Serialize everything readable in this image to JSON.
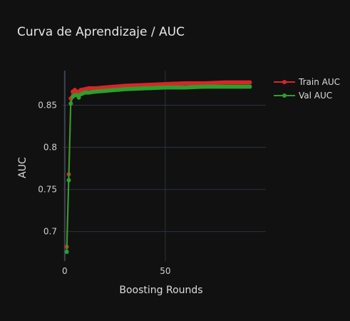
{
  "chart_data": {
    "type": "line",
    "title": "Curva de Aprendizaje / AUC",
    "xlabel": "Boosting Rounds",
    "ylabel": "AUC",
    "xlim": [
      -1,
      100
    ],
    "ylim": [
      0.665,
      0.891
    ],
    "xticks": [
      0,
      50
    ],
    "yticks": [
      0.7,
      0.75,
      0.8,
      0.85
    ],
    "ytick_labels": [
      "0.7",
      "0.75",
      "0.8",
      "0.85"
    ],
    "grid": true,
    "legend_position": "top-right",
    "x": [
      1,
      2,
      3,
      4,
      5,
      6,
      7,
      8,
      10,
      12,
      15,
      20,
      25,
      30,
      40,
      50,
      60,
      70,
      80,
      92
    ],
    "series": [
      {
        "name": "Train AUC",
        "color": "#d62728",
        "values": [
          0.682,
          0.768,
          0.858,
          0.866,
          0.868,
          0.866,
          0.866,
          0.868,
          0.869,
          0.87,
          0.87,
          0.871,
          0.872,
          0.873,
          0.874,
          0.875,
          0.876,
          0.876,
          0.877,
          0.877
        ]
      },
      {
        "name": "Val AUC",
        "color": "#2ca02c",
        "values": [
          0.676,
          0.761,
          0.852,
          0.86,
          0.862,
          0.862,
          0.859,
          0.863,
          0.865,
          0.865,
          0.866,
          0.867,
          0.868,
          0.869,
          0.87,
          0.871,
          0.871,
          0.872,
          0.872,
          0.872
        ]
      }
    ]
  }
}
